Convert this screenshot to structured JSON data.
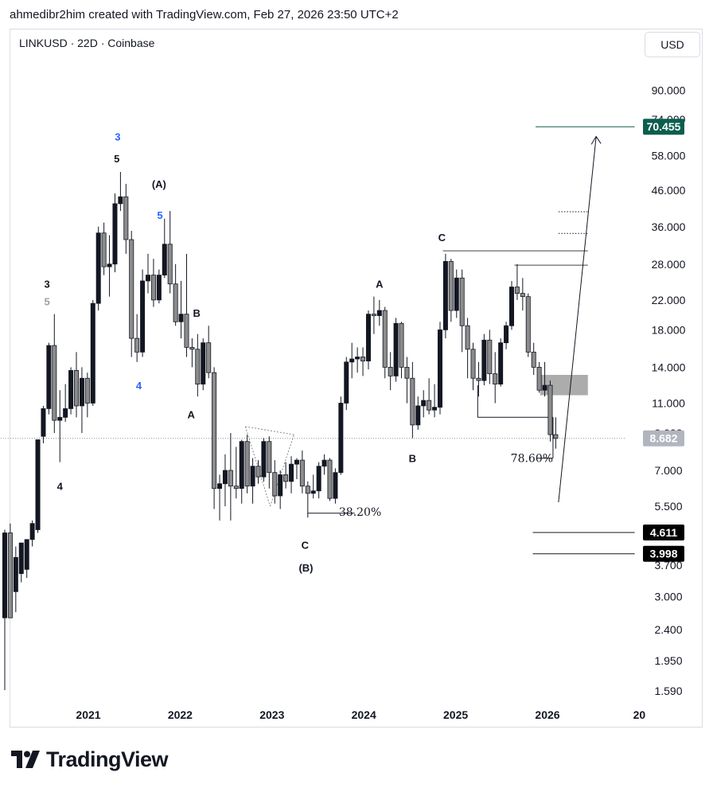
{
  "header": {
    "credit": "ahmedibr2him created with TradingView.com, Feb 27, 2026 23:50 UTC+2"
  },
  "symbol_info": "LINKUSD · 22D · Coinbase",
  "currency_button": "USD",
  "brand": {
    "name": "TradingView",
    "icon": "tradingview-logo-icon"
  },
  "colors": {
    "candle_up": "#131722",
    "candle_down": "#8c8c8c",
    "target_badge": "#0b5e4e",
    "wave_blue": "#2962ff",
    "zone": "#9e9e9e"
  },
  "chart_data": {
    "type": "candlestick",
    "title": "",
    "scale": "log",
    "x_axis": {
      "ticks": [
        "2021",
        "2022",
        "2023",
        "2024",
        "2025",
        "2026",
        "20"
      ]
    },
    "y_axis": {
      "range": [
        1.4,
        110
      ],
      "ticks": [
        "90.000",
        "74.000",
        "58.000",
        "46.000",
        "36.000",
        "28.000",
        "22.000",
        "18.000",
        "14.000",
        "11.000",
        "9.000",
        "7.000",
        "5.500",
        "3.700",
        "3.000",
        "2.400",
        "1.950",
        "1.590"
      ]
    },
    "current_price": "8.682",
    "price_badges": [
      {
        "label": "70.455",
        "value": 70.455,
        "style": "target"
      },
      {
        "label": "8.682",
        "value": 8.682,
        "style": "current"
      },
      {
        "label": "4.611",
        "value": 4.611,
        "style": "level"
      },
      {
        "label": "3.998",
        "value": 3.998,
        "style": "level"
      }
    ],
    "candles": [
      {
        "t": 2020.09,
        "o": 2.6,
        "h": 4.7,
        "l": 1.6,
        "c": 4.6
      },
      {
        "t": 2020.15,
        "o": 4.6,
        "h": 4.9,
        "l": 2.7,
        "c": 2.6
      },
      {
        "t": 2020.21,
        "o": 3.1,
        "h": 4.2,
        "l": 2.7,
        "c": 3.9
      },
      {
        "t": 2020.27,
        "o": 3.5,
        "h": 4.3,
        "l": 3.3,
        "c": 4.3
      },
      {
        "t": 2020.33,
        "o": 3.6,
        "h": 4.4,
        "l": 3.4,
        "c": 4.4
      },
      {
        "t": 2020.39,
        "o": 4.4,
        "h": 5.0,
        "l": 4.2,
        "c": 4.9
      },
      {
        "t": 2020.45,
        "o": 4.7,
        "h": 8.6,
        "l": 4.6,
        "c": 8.6
      },
      {
        "t": 2020.51,
        "o": 8.8,
        "h": 10.8,
        "l": 8.4,
        "c": 10.6
      },
      {
        "t": 2020.57,
        "o": 10.6,
        "h": 16.5,
        "l": 10.2,
        "c": 16.2
      },
      {
        "t": 2020.63,
        "o": 16.2,
        "h": 20.0,
        "l": 9.0,
        "c": 9.8
      },
      {
        "t": 2020.69,
        "o": 9.8,
        "h": 12.0,
        "l": 7.4,
        "c": 10.0
      },
      {
        "t": 2020.75,
        "o": 10.0,
        "h": 12.5,
        "l": 9.7,
        "c": 10.6
      },
      {
        "t": 2020.81,
        "o": 10.6,
        "h": 14.0,
        "l": 10.2,
        "c": 13.7
      },
      {
        "t": 2020.87,
        "o": 13.7,
        "h": 15.5,
        "l": 10.0,
        "c": 10.8
      },
      {
        "t": 2020.93,
        "o": 10.8,
        "h": 14.0,
        "l": 9.0,
        "c": 13.0
      },
      {
        "t": 2020.99,
        "o": 13.0,
        "h": 13.5,
        "l": 10.0,
        "c": 11.0
      },
      {
        "t": 2021.05,
        "o": 11.0,
        "h": 22.0,
        "l": 10.8,
        "c": 21.5
      },
      {
        "t": 2021.11,
        "o": 21.5,
        "h": 36.0,
        "l": 20.5,
        "c": 34.5
      },
      {
        "t": 2021.17,
        "o": 34.5,
        "h": 37.0,
        "l": 26.0,
        "c": 27.5
      },
      {
        "t": 2021.23,
        "o": 27.5,
        "h": 34.0,
        "l": 22.5,
        "c": 28.0
      },
      {
        "t": 2021.29,
        "o": 28.0,
        "h": 45.0,
        "l": 26.5,
        "c": 42.0
      },
      {
        "t": 2021.35,
        "o": 42.0,
        "h": 52.0,
        "l": 40.0,
        "c": 44.0
      },
      {
        "t": 2021.41,
        "o": 44.0,
        "h": 48.0,
        "l": 30.0,
        "c": 33.0
      },
      {
        "t": 2021.47,
        "o": 33.0,
        "h": 35.0,
        "l": 15.0,
        "c": 17.0
      },
      {
        "t": 2021.53,
        "o": 17.0,
        "h": 20.0,
        "l": 14.5,
        "c": 15.5
      },
      {
        "t": 2021.59,
        "o": 15.5,
        "h": 27.0,
        "l": 15.0,
        "c": 25.0
      },
      {
        "t": 2021.65,
        "o": 25.0,
        "h": 30.0,
        "l": 23.0,
        "c": 26.0
      },
      {
        "t": 2021.71,
        "o": 26.0,
        "h": 29.0,
        "l": 21.0,
        "c": 22.0
      },
      {
        "t": 2021.77,
        "o": 22.0,
        "h": 27.0,
        "l": 21.5,
        "c": 26.0
      },
      {
        "t": 2021.83,
        "o": 26.0,
        "h": 38.0,
        "l": 25.5,
        "c": 32.0
      },
      {
        "t": 2021.89,
        "o": 32.0,
        "h": 40.0,
        "l": 23.0,
        "c": 24.5
      },
      {
        "t": 2021.95,
        "o": 24.5,
        "h": 28.0,
        "l": 18.5,
        "c": 19.0
      },
      {
        "t": 2022.01,
        "o": 19.0,
        "h": 25.0,
        "l": 17.0,
        "c": 20.0
      },
      {
        "t": 2022.07,
        "o": 20.0,
        "h": 30.0,
        "l": 15.0,
        "c": 16.0
      },
      {
        "t": 2022.13,
        "o": 16.0,
        "h": 17.0,
        "l": 14.0,
        "c": 15.8
      },
      {
        "t": 2022.19,
        "o": 15.8,
        "h": 17.5,
        "l": 11.5,
        "c": 12.5
      },
      {
        "t": 2022.25,
        "o": 12.5,
        "h": 17.0,
        "l": 12.0,
        "c": 16.5
      },
      {
        "t": 2022.31,
        "o": 16.5,
        "h": 18.5,
        "l": 13.0,
        "c": 13.5
      },
      {
        "t": 2022.37,
        "o": 13.5,
        "h": 14.0,
        "l": 5.4,
        "c": 6.2
      },
      {
        "t": 2022.43,
        "o": 6.2,
        "h": 6.8,
        "l": 5.0,
        "c": 6.4
      },
      {
        "t": 2022.49,
        "o": 6.4,
        "h": 7.8,
        "l": 5.5,
        "c": 7.0
      },
      {
        "t": 2022.55,
        "o": 7.0,
        "h": 9.0,
        "l": 5.0,
        "c": 6.3
      },
      {
        "t": 2022.61,
        "o": 6.3,
        "h": 8.2,
        "l": 5.8,
        "c": 6.2
      },
      {
        "t": 2022.67,
        "o": 6.2,
        "h": 8.6,
        "l": 5.6,
        "c": 8.5
      },
      {
        "t": 2022.73,
        "o": 8.5,
        "h": 8.9,
        "l": 6.0,
        "c": 6.3
      },
      {
        "t": 2022.79,
        "o": 6.3,
        "h": 7.6,
        "l": 5.6,
        "c": 7.2
      },
      {
        "t": 2022.85,
        "o": 7.2,
        "h": 7.5,
        "l": 6.4,
        "c": 6.7
      },
      {
        "t": 2022.91,
        "o": 6.7,
        "h": 8.7,
        "l": 6.5,
        "c": 8.5
      },
      {
        "t": 2022.97,
        "o": 8.5,
        "h": 8.8,
        "l": 6.2,
        "c": 6.9
      },
      {
        "t": 2023.03,
        "o": 6.9,
        "h": 7.5,
        "l": 5.6,
        "c": 5.9
      },
      {
        "t": 2023.09,
        "o": 5.9,
        "h": 7.0,
        "l": 5.4,
        "c": 6.8
      },
      {
        "t": 2023.15,
        "o": 6.8,
        "h": 7.4,
        "l": 6.2,
        "c": 6.5
      },
      {
        "t": 2023.21,
        "o": 6.5,
        "h": 7.7,
        "l": 6.0,
        "c": 7.3
      },
      {
        "t": 2023.27,
        "o": 7.3,
        "h": 7.6,
        "l": 6.6,
        "c": 7.5
      },
      {
        "t": 2023.33,
        "o": 7.5,
        "h": 8.0,
        "l": 6.0,
        "c": 6.3
      },
      {
        "t": 2023.39,
        "o": 6.3,
        "h": 6.5,
        "l": 5.1,
        "c": 6.0
      },
      {
        "t": 2023.45,
        "o": 6.0,
        "h": 6.8,
        "l": 5.8,
        "c": 6.1
      },
      {
        "t": 2023.51,
        "o": 6.1,
        "h": 7.4,
        "l": 5.8,
        "c": 7.2
      },
      {
        "t": 2023.57,
        "o": 7.2,
        "h": 7.8,
        "l": 6.8,
        "c": 7.5
      },
      {
        "t": 2023.63,
        "o": 7.5,
        "h": 7.6,
        "l": 5.7,
        "c": 5.8
      },
      {
        "t": 2023.69,
        "o": 5.8,
        "h": 7.1,
        "l": 5.6,
        "c": 6.9
      },
      {
        "t": 2023.75,
        "o": 6.9,
        "h": 11.5,
        "l": 6.8,
        "c": 11.0
      },
      {
        "t": 2023.81,
        "o": 11.0,
        "h": 15.0,
        "l": 10.5,
        "c": 14.5
      },
      {
        "t": 2023.87,
        "o": 14.5,
        "h": 16.5,
        "l": 13.0,
        "c": 14.8
      },
      {
        "t": 2023.93,
        "o": 14.8,
        "h": 16.0,
        "l": 13.5,
        "c": 15.0
      },
      {
        "t": 2023.99,
        "o": 15.0,
        "h": 16.0,
        "l": 13.2,
        "c": 14.6
      },
      {
        "t": 2024.05,
        "o": 14.6,
        "h": 20.5,
        "l": 13.8,
        "c": 20.0
      },
      {
        "t": 2024.11,
        "o": 20.0,
        "h": 22.5,
        "l": 17.5,
        "c": 19.8
      },
      {
        "t": 2024.17,
        "o": 19.8,
        "h": 22.0,
        "l": 18.5,
        "c": 20.5
      },
      {
        "t": 2024.23,
        "o": 20.5,
        "h": 21.0,
        "l": 13.0,
        "c": 14.0
      },
      {
        "t": 2024.29,
        "o": 14.0,
        "h": 15.5,
        "l": 12.0,
        "c": 13.2
      },
      {
        "t": 2024.35,
        "o": 13.2,
        "h": 19.5,
        "l": 12.7,
        "c": 18.8
      },
      {
        "t": 2024.41,
        "o": 18.8,
        "h": 19.0,
        "l": 13.0,
        "c": 14.0
      },
      {
        "t": 2024.47,
        "o": 14.0,
        "h": 15.0,
        "l": 11.0,
        "c": 13.0
      },
      {
        "t": 2024.53,
        "o": 13.0,
        "h": 14.5,
        "l": 8.7,
        "c": 9.5
      },
      {
        "t": 2024.59,
        "o": 9.5,
        "h": 11.5,
        "l": 9.2,
        "c": 10.8
      },
      {
        "t": 2024.65,
        "o": 10.8,
        "h": 12.0,
        "l": 10.0,
        "c": 11.2
      },
      {
        "t": 2024.71,
        "o": 11.2,
        "h": 13.0,
        "l": 10.2,
        "c": 10.5
      },
      {
        "t": 2024.77,
        "o": 10.5,
        "h": 12.5,
        "l": 10.0,
        "c": 10.7
      },
      {
        "t": 2024.83,
        "o": 10.7,
        "h": 19.0,
        "l": 10.2,
        "c": 18.0
      },
      {
        "t": 2024.89,
        "o": 18.0,
        "h": 30.0,
        "l": 17.0,
        "c": 28.5
      },
      {
        "t": 2024.95,
        "o": 28.5,
        "h": 29.0,
        "l": 19.0,
        "c": 20.5
      },
      {
        "t": 2025.01,
        "o": 20.5,
        "h": 27.0,
        "l": 19.5,
        "c": 25.5
      },
      {
        "t": 2025.07,
        "o": 25.5,
        "h": 27.0,
        "l": 15.5,
        "c": 18.5
      },
      {
        "t": 2025.13,
        "o": 18.5,
        "h": 19.5,
        "l": 13.0,
        "c": 15.8
      },
      {
        "t": 2025.19,
        "o": 15.8,
        "h": 16.5,
        "l": 12.0,
        "c": 13.0
      },
      {
        "t": 2025.25,
        "o": 13.0,
        "h": 14.5,
        "l": 11.5,
        "c": 12.8
      },
      {
        "t": 2025.31,
        "o": 12.8,
        "h": 17.5,
        "l": 12.4,
        "c": 16.8
      },
      {
        "t": 2025.37,
        "o": 16.8,
        "h": 18.0,
        "l": 12.5,
        "c": 13.4
      },
      {
        "t": 2025.43,
        "o": 13.4,
        "h": 15.5,
        "l": 11.0,
        "c": 12.5
      },
      {
        "t": 2025.49,
        "o": 12.5,
        "h": 17.0,
        "l": 12.3,
        "c": 16.5
      },
      {
        "t": 2025.55,
        "o": 16.5,
        "h": 19.0,
        "l": 15.8,
        "c": 18.5
      },
      {
        "t": 2025.61,
        "o": 18.5,
        "h": 25.0,
        "l": 18.0,
        "c": 24.0
      },
      {
        "t": 2025.67,
        "o": 24.0,
        "h": 28.0,
        "l": 22.0,
        "c": 23.0
      },
      {
        "t": 2025.73,
        "o": 23.0,
        "h": 25.5,
        "l": 20.5,
        "c": 22.5
      },
      {
        "t": 2025.79,
        "o": 22.5,
        "h": 23.0,
        "l": 15.0,
        "c": 15.5
      },
      {
        "t": 2025.85,
        "o": 15.5,
        "h": 16.5,
        "l": 13.3,
        "c": 14.0
      },
      {
        "t": 2025.91,
        "o": 14.0,
        "h": 14.5,
        "l": 11.8,
        "c": 12.0
      },
      {
        "t": 2025.97,
        "o": 12.0,
        "h": 14.5,
        "l": 11.5,
        "c": 12.4
      },
      {
        "t": 2026.03,
        "o": 12.4,
        "h": 12.8,
        "l": 8.5,
        "c": 8.9
      },
      {
        "t": 2026.09,
        "o": 8.9,
        "h": 10.0,
        "l": 8.1,
        "c": 8.682
      }
    ],
    "annotations": {
      "wave_labels": [
        {
          "text": "3",
          "t": 2021.32,
          "p": 66,
          "color": "blue"
        },
        {
          "text": "5",
          "t": 2021.31,
          "p": 57,
          "color": "black"
        },
        {
          "text": "(A)",
          "t": 2021.77,
          "p": 48,
          "color": "black"
        },
        {
          "text": "5",
          "t": 2021.78,
          "p": 39,
          "color": "blue"
        },
        {
          "text": "3",
          "t": 2020.55,
          "p": 24.5,
          "color": "black"
        },
        {
          "text": "5",
          "t": 2020.55,
          "p": 21.8,
          "color": "gray"
        },
        {
          "text": "4",
          "t": 2021.55,
          "p": 12.4,
          "color": "blue"
        },
        {
          "text": "4",
          "t": 2020.69,
          "p": 6.3,
          "color": "black"
        },
        {
          "text": "B",
          "t": 2022.18,
          "p": 20.2,
          "color": "black"
        },
        {
          "text": "A",
          "t": 2022.12,
          "p": 10.2,
          "color": "black"
        },
        {
          "text": "C",
          "t": 2023.36,
          "p": 4.25,
          "color": "black"
        },
        {
          "text": "(B)",
          "t": 2023.37,
          "p": 3.65,
          "color": "black"
        },
        {
          "text": "A",
          "t": 2024.17,
          "p": 24.5,
          "color": "black"
        },
        {
          "text": "B",
          "t": 2024.53,
          "p": 7.6,
          "color": "black"
        },
        {
          "text": "C",
          "t": 2024.85,
          "p": 33.5,
          "color": "black"
        }
      ],
      "fib_labels": [
        {
          "text": "38.20%",
          "t": 2023.96,
          "p": 5.3
        },
        {
          "text": "78.60%",
          "t": 2025.83,
          "p": 7.6
        }
      ]
    }
  }
}
